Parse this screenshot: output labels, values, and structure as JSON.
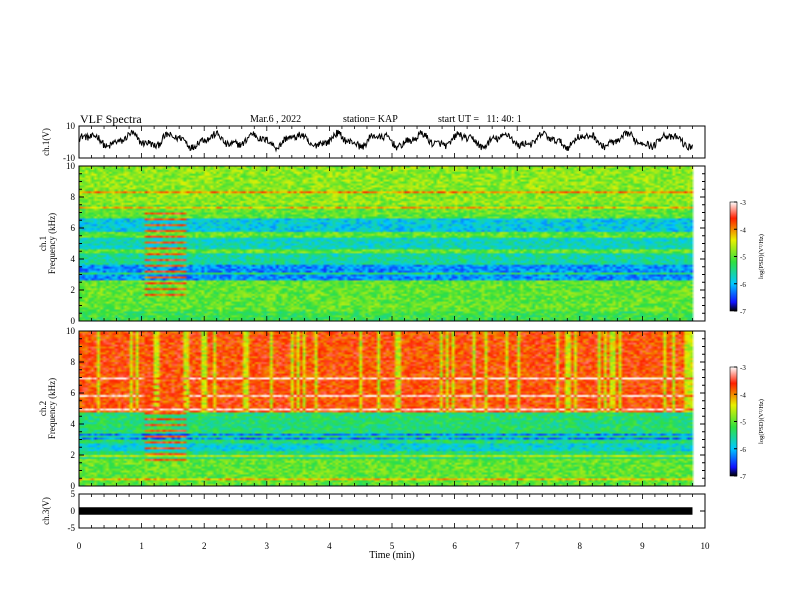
{
  "header": {
    "title": "VLF Spectra",
    "date": "Mar.6 , 2022",
    "station": "station= KAP",
    "start_ut": "start UT =   11: 40: 1"
  },
  "chart_data": [
    {
      "type": "line",
      "name": "ch1-waveform",
      "ylabel": "ch.1(V)",
      "ylim": [
        -10,
        10
      ],
      "yticks": [
        "10",
        "-10"
      ],
      "xlim": [
        0,
        10
      ]
    },
    {
      "type": "heatmap",
      "name": "ch1-spectrogram",
      "ylabel": "ch.1\nFrequency (kHz)",
      "ylim": [
        0,
        10
      ],
      "yticks": [
        "0",
        "2",
        "4",
        "6",
        "8",
        "10"
      ],
      "xlim": [
        0,
        10
      ],
      "colorbar": {
        "label": "log(PSD)(V²/Hz)",
        "range": [
          -7,
          -3
        ],
        "ticks": [
          "-3",
          "-4",
          "-5",
          "-6",
          "-7"
        ]
      }
    },
    {
      "type": "heatmap",
      "name": "ch2-spectrogram",
      "ylabel": "ch.2\nFrequency (kHz)",
      "ylim": [
        0,
        10
      ],
      "yticks": [
        "0",
        "2",
        "4",
        "6",
        "8",
        "10"
      ],
      "xlim": [
        0,
        10
      ],
      "colorbar": {
        "label": "log(PSD)(V²/Hz)",
        "range": [
          -7,
          -3
        ],
        "ticks": [
          "-3",
          "-4",
          "-5",
          "-6",
          "-7"
        ]
      }
    },
    {
      "type": "line",
      "name": "ch3-signal",
      "ylabel": "ch.3(V)",
      "ylim": [
        -5,
        5
      ],
      "yticks": [
        "5",
        "0",
        "-5"
      ],
      "xlim": [
        0,
        10
      ]
    }
  ],
  "xaxis": {
    "label": "Time (min)",
    "ticks": [
      "0",
      "1",
      "2",
      "3",
      "4",
      "5",
      "6",
      "7",
      "8",
      "9",
      "10"
    ]
  },
  "colors": {
    "line": "#000000",
    "frame": "#000000"
  }
}
